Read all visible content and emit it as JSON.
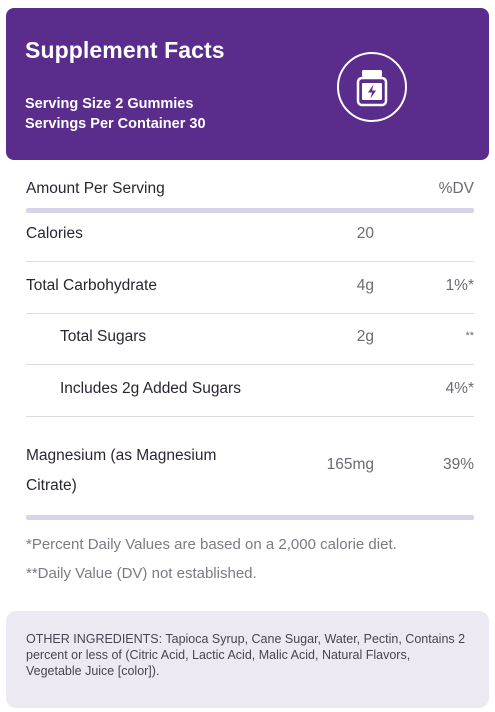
{
  "header": {
    "title": "Supplement Facts",
    "serving_size": "Serving Size 2 Gummies",
    "servings_per_container": "Servings Per Container 30",
    "icon": "supplement-jar-icon"
  },
  "table": {
    "col_amount_per_serving": "Amount Per Serving",
    "col_dv": "%DV",
    "rows": [
      {
        "label": "Calories",
        "amount": "20",
        "dv": ""
      },
      {
        "label": "Total Carbohydrate",
        "amount": "4g",
        "dv": "1%*"
      },
      {
        "label": "Total Sugars",
        "amount": "2g",
        "dv": "**"
      },
      {
        "label": "Includes 2g Added Sugars",
        "amount": "",
        "dv": "4%*"
      },
      {
        "label_line1": "Magnesium (as Magnesium",
        "label_line2": "Citrate)",
        "amount": "165mg",
        "dv": "39%"
      }
    ]
  },
  "notes": {
    "percent_dv": "*Percent Daily Values are based on a 2,000 calorie diet.",
    "dv_not_established": "**Daily Value (DV) not established."
  },
  "other_ingredients": "OTHER INGREDIENTS: Tapioca Syrup, Cane Sugar, Water, Pectin, Contains 2 percent or less of (Citric Acid, Lactic Acid, Malic Acid, Natural Flavors, Vegetable Juice [color]).",
  "colors": {
    "header_bg": "#5a2d8c",
    "divider_bar": "#d9d3ea",
    "ingredients_bg": "#ece9f3"
  }
}
